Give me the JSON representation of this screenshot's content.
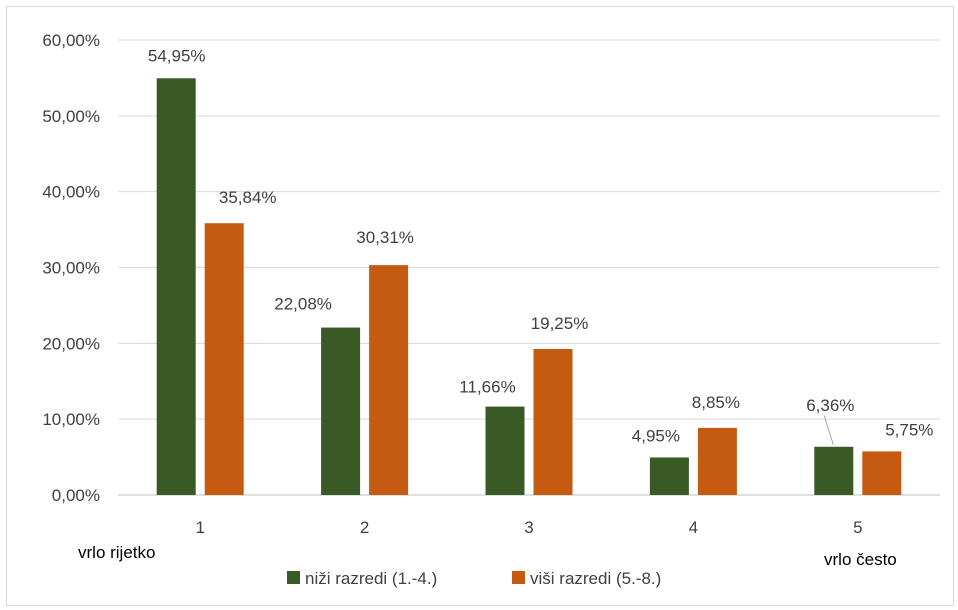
{
  "chart_data": {
    "type": "bar",
    "categories": [
      "1",
      "2",
      "3",
      "4",
      "5"
    ],
    "series": [
      {
        "name": "niži razredi (1.-4.)",
        "values": [
          54.95,
          22.08,
          11.66,
          4.95,
          6.36
        ],
        "labels": [
          "54,95%",
          "22,08%",
          "11,66%",
          "4,95%",
          "6,36%"
        ],
        "color": "#3a5a25"
      },
      {
        "name": "viši razredi (5.-8.)",
        "values": [
          35.84,
          30.31,
          19.25,
          8.85,
          5.75
        ],
        "labels": [
          "35,84%",
          "30,31%",
          "19,25%",
          "8,85%",
          "5,75%"
        ],
        "color": "#c55a11"
      }
    ],
    "ylim": [
      0,
      60
    ],
    "yticks": [
      0,
      10,
      20,
      30,
      40,
      50,
      60
    ],
    "ytick_labels": [
      "0,00%",
      "10,00%",
      "20,00%",
      "30,00%",
      "40,00%",
      "50,00%",
      "60,00%"
    ],
    "scale_labels": {
      "low": "vrlo rijetko",
      "high": "vrlo često"
    },
    "grid": true,
    "legend_position": "bottom"
  }
}
